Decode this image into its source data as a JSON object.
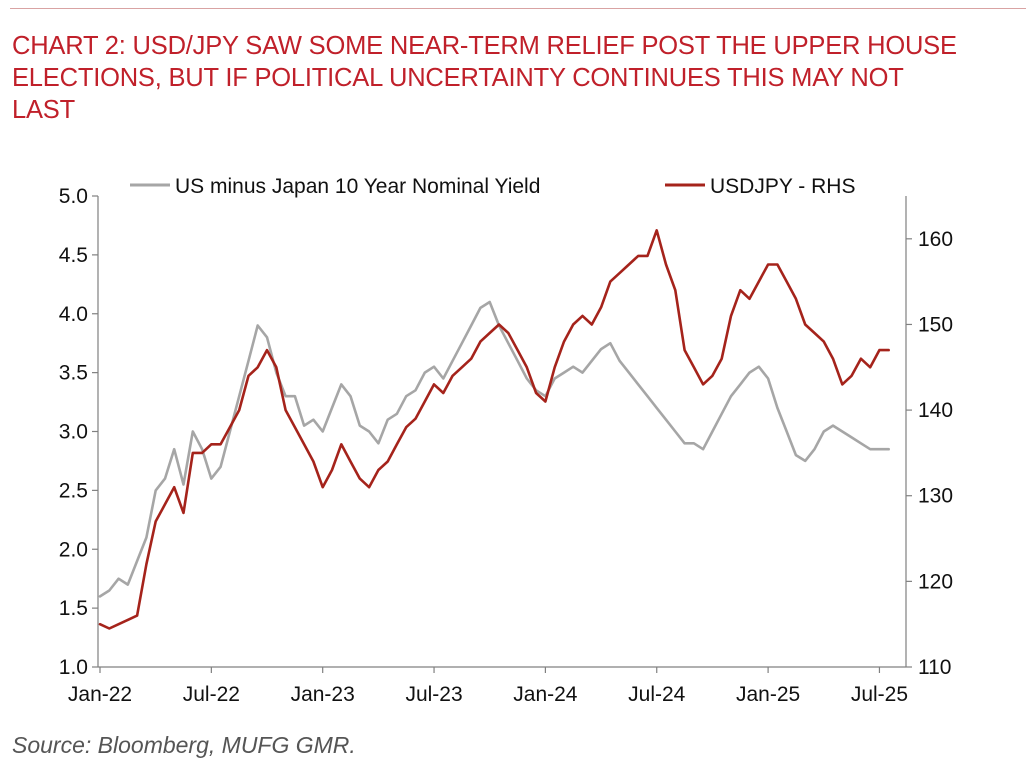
{
  "header": {
    "title_lines": [
      "CHART 2: USD/JPY SAW SOME NEAR-TERM RELIEF POST THE UPPER HOUSE",
      "ELECTIONS, BUT IF POLITICAL UNCERTAINTY CONTINUES THIS MAY NOT",
      "LAST"
    ]
  },
  "footer": {
    "source": "Source: Bloomberg, MUFG GMR."
  },
  "colors": {
    "title": "#c0202a",
    "series_yield": "#a6a6a6",
    "series_usdjpy": "#a5231b",
    "axis": "#808080"
  },
  "chart_data": {
    "type": "line",
    "title": "CHART 2: USD/JPY SAW SOME NEAR-TERM RELIEF POST THE UPPER HOUSE ELECTIONS, BUT IF POLITICAL UNCERTAINTY CONTINUES THIS MAY NOT LAST",
    "x_unit": "months since Jan-2022",
    "x_range": [
      0,
      43
    ],
    "x_ticks": [
      {
        "label": "Jan-22",
        "x": 0
      },
      {
        "label": "Jul-22",
        "x": 6
      },
      {
        "label": "Jan-23",
        "x": 12
      },
      {
        "label": "Jul-23",
        "x": 18
      },
      {
        "label": "Jan-24",
        "x": 24
      },
      {
        "label": "Jul-24",
        "x": 30
      },
      {
        "label": "Jan-25",
        "x": 36
      },
      {
        "label": "Jul-25",
        "x": 42
      }
    ],
    "y_left": {
      "range": [
        1.0,
        5.0
      ],
      "ticks": [
        "1.0",
        "1.5",
        "2.0",
        "2.5",
        "3.0",
        "3.5",
        "4.0",
        "4.5",
        "5.0"
      ]
    },
    "y_right": {
      "range": [
        110,
        165
      ],
      "ticks": [
        "110",
        "120",
        "130",
        "140",
        "150",
        "160"
      ]
    },
    "legend": {
      "position": "top",
      "entries": [
        "US minus Japan 10 Year Nominal Yield",
        "USDJPY - RHS"
      ]
    },
    "series": [
      {
        "name": "US minus Japan 10 Year Nominal Yield",
        "axis": "left",
        "points": [
          [
            0,
            1.6
          ],
          [
            0.5,
            1.65
          ],
          [
            1,
            1.75
          ],
          [
            1.5,
            1.7
          ],
          [
            2,
            1.9
          ],
          [
            2.5,
            2.1
          ],
          [
            3,
            2.5
          ],
          [
            3.5,
            2.6
          ],
          [
            4,
            2.85
          ],
          [
            4.5,
            2.55
          ],
          [
            5,
            3.0
          ],
          [
            5.5,
            2.85
          ],
          [
            6,
            2.6
          ],
          [
            6.5,
            2.7
          ],
          [
            7,
            3.0
          ],
          [
            7.5,
            3.3
          ],
          [
            8,
            3.6
          ],
          [
            8.5,
            3.9
          ],
          [
            9,
            3.8
          ],
          [
            9.5,
            3.5
          ],
          [
            10,
            3.3
          ],
          [
            10.5,
            3.3
          ],
          [
            11,
            3.05
          ],
          [
            11.5,
            3.1
          ],
          [
            12,
            3.0
          ],
          [
            12.5,
            3.2
          ],
          [
            13,
            3.4
          ],
          [
            13.5,
            3.3
          ],
          [
            14,
            3.05
          ],
          [
            14.5,
            3.0
          ],
          [
            15,
            2.9
          ],
          [
            15.5,
            3.1
          ],
          [
            16,
            3.15
          ],
          [
            16.5,
            3.3
          ],
          [
            17,
            3.35
          ],
          [
            17.5,
            3.5
          ],
          [
            18,
            3.55
          ],
          [
            18.5,
            3.45
          ],
          [
            19,
            3.6
          ],
          [
            19.5,
            3.75
          ],
          [
            20,
            3.9
          ],
          [
            20.5,
            4.05
          ],
          [
            21,
            4.1
          ],
          [
            21.5,
            3.9
          ],
          [
            22,
            3.75
          ],
          [
            22.5,
            3.6
          ],
          [
            23,
            3.45
          ],
          [
            23.5,
            3.35
          ],
          [
            24,
            3.3
          ],
          [
            24.5,
            3.45
          ],
          [
            25,
            3.5
          ],
          [
            25.5,
            3.55
          ],
          [
            26,
            3.5
          ],
          [
            26.5,
            3.6
          ],
          [
            27,
            3.7
          ],
          [
            27.5,
            3.75
          ],
          [
            28,
            3.6
          ],
          [
            28.5,
            3.5
          ],
          [
            29,
            3.4
          ],
          [
            29.5,
            3.3
          ],
          [
            30,
            3.2
          ],
          [
            30.5,
            3.1
          ],
          [
            31,
            3.0
          ],
          [
            31.5,
            2.9
          ],
          [
            32,
            2.9
          ],
          [
            32.5,
            2.85
          ],
          [
            33,
            3.0
          ],
          [
            33.5,
            3.15
          ],
          [
            34,
            3.3
          ],
          [
            34.5,
            3.4
          ],
          [
            35,
            3.5
          ],
          [
            35.5,
            3.55
          ],
          [
            36,
            3.45
          ],
          [
            36.5,
            3.2
          ],
          [
            37,
            3.0
          ],
          [
            37.5,
            2.8
          ],
          [
            38,
            2.75
          ],
          [
            38.5,
            2.85
          ],
          [
            39,
            3.0
          ],
          [
            39.5,
            3.05
          ],
          [
            40,
            3.0
          ],
          [
            40.5,
            2.95
          ],
          [
            41,
            2.9
          ],
          [
            41.5,
            2.85
          ],
          [
            42,
            2.85
          ],
          [
            42.5,
            2.85
          ]
        ]
      },
      {
        "name": "USDJPY - RHS",
        "axis": "right",
        "points": [
          [
            0,
            115
          ],
          [
            0.5,
            114.5
          ],
          [
            1,
            115
          ],
          [
            1.5,
            115.5
          ],
          [
            2,
            116
          ],
          [
            2.5,
            122
          ],
          [
            3,
            127
          ],
          [
            3.5,
            129
          ],
          [
            4,
            131
          ],
          [
            4.5,
            128
          ],
          [
            5,
            135
          ],
          [
            5.5,
            135
          ],
          [
            6,
            136
          ],
          [
            6.5,
            136
          ],
          [
            7,
            138
          ],
          [
            7.5,
            140
          ],
          [
            8,
            144
          ],
          [
            8.5,
            145
          ],
          [
            9,
            147
          ],
          [
            9.5,
            145
          ],
          [
            10,
            140
          ],
          [
            10.5,
            138
          ],
          [
            11,
            136
          ],
          [
            11.5,
            134
          ],
          [
            12,
            131
          ],
          [
            12.5,
            133
          ],
          [
            13,
            136
          ],
          [
            13.5,
            134
          ],
          [
            14,
            132
          ],
          [
            14.5,
            131
          ],
          [
            15,
            133
          ],
          [
            15.5,
            134
          ],
          [
            16,
            136
          ],
          [
            16.5,
            138
          ],
          [
            17,
            139
          ],
          [
            17.5,
            141
          ],
          [
            18,
            143
          ],
          [
            18.5,
            142
          ],
          [
            19,
            144
          ],
          [
            19.5,
            145
          ],
          [
            20,
            146
          ],
          [
            20.5,
            148
          ],
          [
            21,
            149
          ],
          [
            21.5,
            150
          ],
          [
            22,
            149
          ],
          [
            22.5,
            147
          ],
          [
            23,
            145
          ],
          [
            23.5,
            142
          ],
          [
            24,
            141
          ],
          [
            24.5,
            145
          ],
          [
            25,
            148
          ],
          [
            25.5,
            150
          ],
          [
            26,
            151
          ],
          [
            26.5,
            150
          ],
          [
            27,
            152
          ],
          [
            27.5,
            155
          ],
          [
            28,
            156
          ],
          [
            28.5,
            157
          ],
          [
            29,
            158
          ],
          [
            29.5,
            158
          ],
          [
            30,
            161
          ],
          [
            30.5,
            157
          ],
          [
            31,
            154
          ],
          [
            31.5,
            147
          ],
          [
            32,
            145
          ],
          [
            32.5,
            143
          ],
          [
            33,
            144
          ],
          [
            33.5,
            146
          ],
          [
            34,
            151
          ],
          [
            34.5,
            154
          ],
          [
            35,
            153
          ],
          [
            35.5,
            155
          ],
          [
            36,
            157
          ],
          [
            36.5,
            157
          ],
          [
            37,
            155
          ],
          [
            37.5,
            153
          ],
          [
            38,
            150
          ],
          [
            38.5,
            149
          ],
          [
            39,
            148
          ],
          [
            39.5,
            146
          ],
          [
            40,
            143
          ],
          [
            40.5,
            144
          ],
          [
            41,
            146
          ],
          [
            41.5,
            145
          ],
          [
            42,
            147
          ],
          [
            42.5,
            147
          ]
        ]
      }
    ]
  }
}
